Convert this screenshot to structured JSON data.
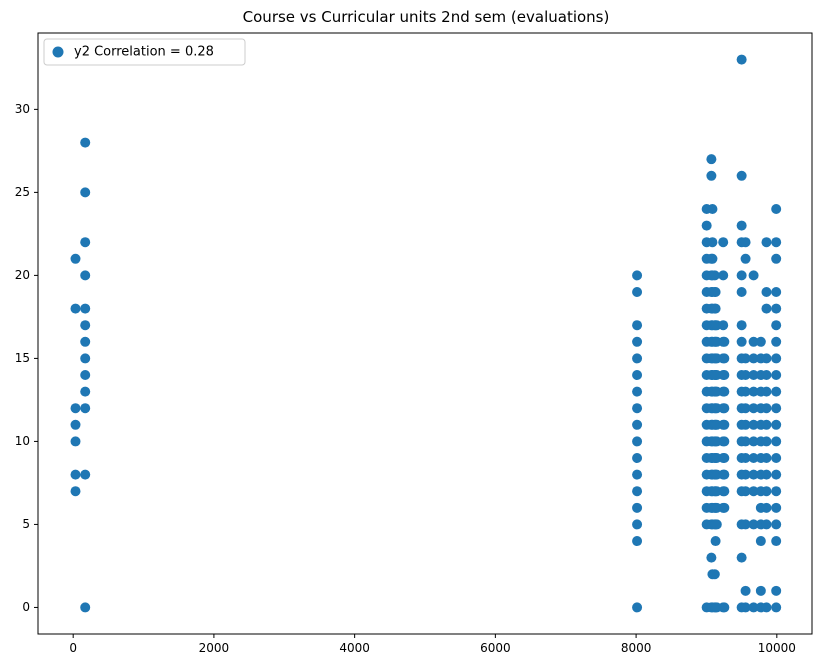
{
  "chart_data": {
    "type": "scatter",
    "title": "Course vs Curricular units 2nd sem (evaluations)",
    "xlabel": "",
    "ylabel": "",
    "xlim": [
      -500,
      10500
    ],
    "ylim": [
      -1.6,
      34.6
    ],
    "x_ticks": [
      0,
      2000,
      4000,
      6000,
      8000,
      10000
    ],
    "y_ticks": [
      0,
      5,
      10,
      15,
      20,
      25,
      30
    ],
    "legend": {
      "label": "y2 Correlation = 0.28",
      "position": "top-left"
    },
    "marker_color": "#1f77b4",
    "series": [
      {
        "name": "y2 Correlation = 0.28",
        "columns": [
          {
            "x": 33,
            "y": [
              7,
              8,
              10,
              11,
              12,
              18,
              21
            ]
          },
          {
            "x": 171,
            "y": [
              0,
              8,
              12,
              13,
              14,
              15,
              16,
              17,
              18,
              20,
              22,
              25,
              28
            ]
          },
          {
            "x": 8014,
            "y": [
              0,
              4,
              5,
              6,
              7,
              8,
              9,
              10,
              11,
              12,
              13,
              14,
              15,
              16,
              17,
              19,
              20
            ]
          },
          {
            "x": 9003,
            "y": [
              0,
              5,
              6,
              7,
              8,
              9,
              10,
              11,
              12,
              13,
              14,
              15,
              16,
              17,
              18,
              19,
              20,
              21,
              22,
              23,
              24
            ]
          },
          {
            "x": 9070,
            "y": [
              0,
              3,
              5,
              6,
              7,
              8,
              9,
              10,
              11,
              12,
              13,
              14,
              15,
              16,
              17,
              18,
              19,
              20,
              21,
              26,
              27
            ]
          },
          {
            "x": 9085,
            "y": [
              0,
              2,
              5,
              6,
              7,
              8,
              9,
              10,
              11,
              12,
              13,
              14,
              15,
              16,
              17,
              18,
              19,
              20,
              21,
              22,
              24
            ]
          },
          {
            "x": 9119,
            "y": [
              0,
              2,
              5,
              6,
              7,
              8,
              9,
              10,
              11,
              12,
              13,
              14,
              15,
              16,
              17,
              18,
              19,
              20
            ]
          },
          {
            "x": 9130,
            "y": [
              0,
              4,
              5,
              6,
              7,
              8,
              9,
              10,
              11,
              12,
              13,
              14,
              15,
              16,
              17,
              18,
              19
            ]
          },
          {
            "x": 9147,
            "y": [
              0,
              5,
              6,
              7,
              8,
              9,
              10,
              11,
              12,
              13,
              14,
              15,
              16,
              17
            ]
          },
          {
            "x": 9238,
            "y": [
              0,
              6,
              7,
              8,
              9,
              10,
              11,
              12,
              13,
              14,
              15,
              16,
              17,
              20,
              22
            ]
          },
          {
            "x": 9254,
            "y": [
              0,
              6,
              7,
              8,
              9,
              10,
              11,
              12,
              13,
              14,
              15,
              16
            ]
          },
          {
            "x": 9500,
            "y": [
              0,
              3,
              5,
              7,
              8,
              9,
              10,
              11,
              12,
              13,
              14,
              15,
              16,
              17,
              19,
              20,
              22,
              23,
              26,
              33
            ]
          },
          {
            "x": 9556,
            "y": [
              0,
              1,
              5,
              7,
              8,
              9,
              10,
              11,
              12,
              13,
              14,
              15,
              21,
              22
            ]
          },
          {
            "x": 9670,
            "y": [
              0,
              5,
              7,
              8,
              9,
              10,
              11,
              12,
              13,
              14,
              15,
              16,
              20
            ]
          },
          {
            "x": 9773,
            "y": [
              0,
              1,
              4,
              5,
              6,
              7,
              8,
              9,
              10,
              11,
              12,
              13,
              14,
              15,
              16
            ]
          },
          {
            "x": 9853,
            "y": [
              0,
              5,
              6,
              7,
              8,
              9,
              10,
              11,
              12,
              13,
              14,
              15,
              18,
              19,
              22
            ]
          },
          {
            "x": 9991,
            "y": [
              0,
              1,
              4,
              5,
              6,
              7,
              8,
              9,
              10,
              11,
              12,
              13,
              14,
              15,
              16,
              17,
              18,
              19,
              21,
              22,
              24
            ]
          }
        ]
      }
    ]
  }
}
